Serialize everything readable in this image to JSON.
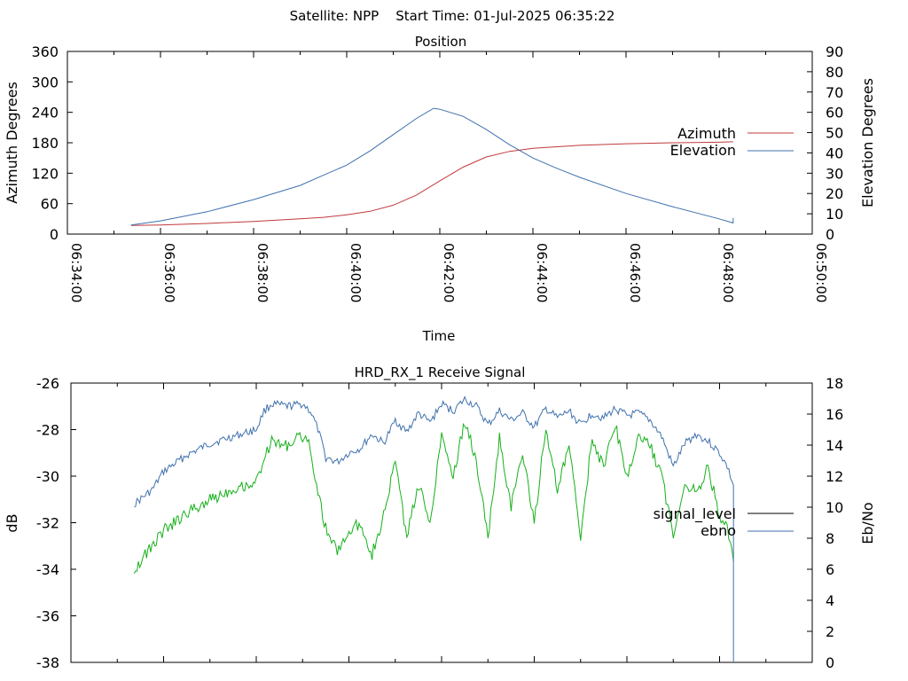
{
  "title": "Satellite: NPP    Start Time: 01-Jul-2025 06:35:22",
  "colors": {
    "azimuth": "#c0393b",
    "elevation": "#3f71ad",
    "signal_level": "#000000",
    "ebno": "#3f71ad",
    "green_trace": "#16b01a"
  },
  "chart_data": [
    {
      "type": "line",
      "title": "Position",
      "xlabel": "Time",
      "ylabel": "Azimuth Degrees",
      "y2label": "Elevation Degrees",
      "xlim": [
        "06:34:00",
        "06:50:00"
      ],
      "ylim": [
        0,
        360
      ],
      "y2lim": [
        0,
        90
      ],
      "x_ticks": [
        "06:34:00",
        "06:36:00",
        "06:38:00",
        "06:40:00",
        "06:42:00",
        "06:44:00",
        "06:46:00",
        "06:48:00",
        "06:50:00"
      ],
      "y_ticks": [
        0,
        60,
        120,
        180,
        240,
        300,
        360
      ],
      "y2_ticks": [
        0,
        10,
        20,
        30,
        40,
        50,
        60,
        70,
        80,
        90
      ],
      "legend_position": "right",
      "grid": false,
      "series": [
        {
          "name": "Azimuth",
          "axis": "left",
          "x": [
            "06:35:22",
            "06:36:00",
            "06:37:00",
            "06:38:00",
            "06:39:00",
            "06:39:30",
            "06:40:00",
            "06:40:30",
            "06:41:00",
            "06:41:30",
            "06:42:00",
            "06:42:30",
            "06:43:00",
            "06:43:30",
            "06:44:00",
            "06:45:00",
            "06:46:00",
            "06:47:00",
            "06:48:00",
            "06:48:18"
          ],
          "y": [
            17,
            18,
            21,
            25,
            30,
            33,
            38,
            45,
            57,
            77,
            105,
            132,
            152,
            163,
            169,
            175,
            178,
            180,
            181,
            182
          ]
        },
        {
          "name": "Elevation",
          "axis": "right",
          "x": [
            "06:35:22",
            "06:36:00",
            "06:37:00",
            "06:38:00",
            "06:39:00",
            "06:39:30",
            "06:40:00",
            "06:40:30",
            "06:41:00",
            "06:41:30",
            "06:41:52",
            "06:42:00",
            "06:42:30",
            "06:43:00",
            "06:43:30",
            "06:44:00",
            "06:44:30",
            "06:45:00",
            "06:46:00",
            "06:47:00",
            "06:48:00",
            "06:48:18",
            "06:48:18"
          ],
          "y": [
            4.5,
            6.5,
            11,
            17,
            24,
            29,
            34,
            41,
            49,
            57,
            62,
            61.5,
            58,
            51.5,
            44,
            37.5,
            32.5,
            28,
            20,
            13.5,
            7.5,
            5.5,
            8
          ]
        }
      ]
    },
    {
      "type": "line",
      "title": "HRD_RX_1 Receive Signal",
      "ylabel": "dB",
      "y2label": "Eb/No",
      "xlim": [
        "06:34:00",
        "06:50:00"
      ],
      "ylim": [
        -38,
        -26
      ],
      "y2lim": [
        0,
        18
      ],
      "y_ticks": [
        -38,
        -36,
        -34,
        -32,
        -30,
        -28,
        -26
      ],
      "y2_ticks": [
        0,
        2,
        4,
        6,
        8,
        10,
        12,
        14,
        16,
        18
      ],
      "legend_position": "right",
      "grid": false,
      "series": [
        {
          "name": "signal_level",
          "axis": "left",
          "x": [
            "06:35:22",
            "06:35:45",
            "06:36:00",
            "06:36:30",
            "06:37:00",
            "06:37:30",
            "06:38:00",
            "06:38:10",
            "06:38:20",
            "06:38:40",
            "06:39:00",
            "06:39:10",
            "06:39:20",
            "06:39:30",
            "06:39:45",
            "06:40:00",
            "06:40:15",
            "06:40:30",
            "06:40:45",
            "06:41:00",
            "06:41:15",
            "06:41:30",
            "06:41:45",
            "06:42:00",
            "06:42:15",
            "06:42:30",
            "06:42:45",
            "06:43:00",
            "06:43:15",
            "06:43:30",
            "06:43:45",
            "06:44:00",
            "06:44:15",
            "06:44:30",
            "06:44:45",
            "06:45:00",
            "06:45:15",
            "06:45:30",
            "06:45:45",
            "06:46:00",
            "06:46:15",
            "06:46:30",
            "06:46:45",
            "06:47:00",
            "06:47:15",
            "06:47:30",
            "06:47:45",
            "06:48:00",
            "06:48:10",
            "06:48:18"
          ],
          "y": [
            -31.2,
            -30.6,
            -29.8,
            -29.1,
            -28.6,
            -28.3,
            -28.0,
            -27.2,
            -26.9,
            -27.0,
            -26.9,
            -27.2,
            -28.0,
            -29.2,
            -29.4,
            -29.0,
            -28.8,
            -28.2,
            -28.6,
            -27.6,
            -28.1,
            -27.3,
            -27.7,
            -26.9,
            -27.2,
            -26.7,
            -27.0,
            -27.8,
            -27.2,
            -27.6,
            -27.3,
            -27.9,
            -27.1,
            -27.5,
            -27.2,
            -27.8,
            -27.3,
            -27.5,
            -27.1,
            -27.4,
            -27.3,
            -27.6,
            -28.3,
            -29.6,
            -28.6,
            -28.2,
            -28.5,
            -29.0,
            -29.6,
            -30.4
          ]
        },
        {
          "name": "ebno",
          "axis": "right",
          "x": [
            "06:35:22",
            "06:35:45",
            "06:36:00",
            "06:36:30",
            "06:37:00",
            "06:37:30",
            "06:38:00",
            "06:38:10",
            "06:38:20",
            "06:38:40",
            "06:39:00",
            "06:39:10",
            "06:39:20",
            "06:39:30",
            "06:39:45",
            "06:40:00",
            "06:40:15",
            "06:40:30",
            "06:40:45",
            "06:41:00",
            "06:41:15",
            "06:41:30",
            "06:41:45",
            "06:42:00",
            "06:42:15",
            "06:42:30",
            "06:42:45",
            "06:43:00",
            "06:43:15",
            "06:43:30",
            "06:43:45",
            "06:44:00",
            "06:44:15",
            "06:44:30",
            "06:44:45",
            "06:45:00",
            "06:45:15",
            "06:45:30",
            "06:45:45",
            "06:46:00",
            "06:46:15",
            "06:46:30",
            "06:46:45",
            "06:47:00",
            "06:47:15",
            "06:47:30",
            "06:47:45",
            "06:48:00",
            "06:48:10",
            "06:48:18"
          ],
          "y": [
            6.0,
            7.5,
            8.5,
            9.6,
            10.5,
            11.2,
            11.6,
            13.2,
            14.2,
            14.0,
            14.6,
            13.8,
            11.0,
            8.6,
            7.2,
            8.4,
            9.0,
            7.0,
            9.4,
            13.0,
            8.0,
            11.5,
            9.0,
            14.8,
            12.0,
            15.5,
            13.0,
            8.0,
            14.5,
            10.0,
            13.5,
            9.0,
            15.2,
            11.0,
            14.0,
            8.0,
            14.5,
            12.5,
            15.4,
            11.8,
            14.6,
            14.0,
            12.0,
            8.3,
            11.5,
            11.0,
            12.5,
            9.5,
            8.5,
            6.5
          ]
        }
      ]
    }
  ]
}
